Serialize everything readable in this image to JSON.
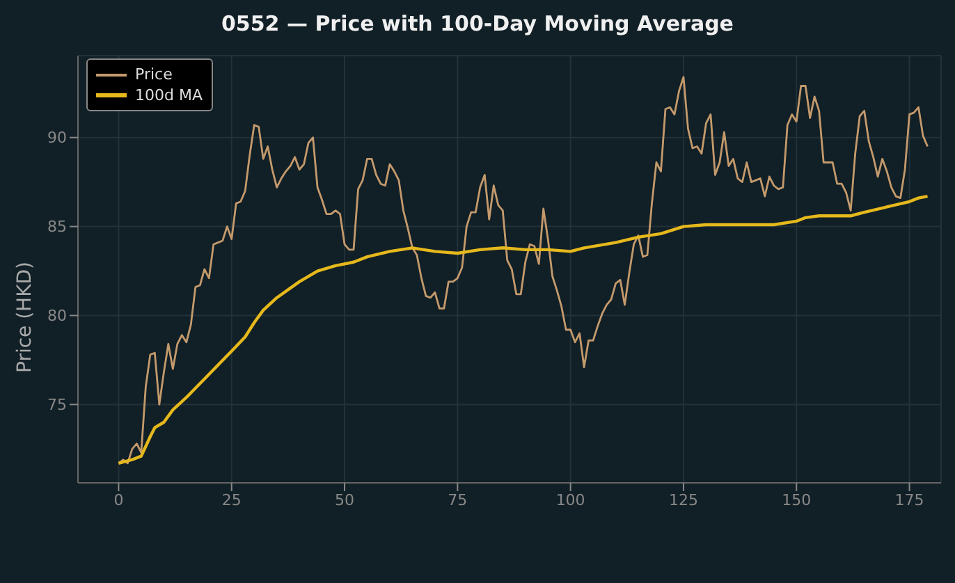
{
  "chart_data": {
    "type": "line",
    "title": "0552 — Price with 100-Day Moving Average",
    "ylabel": "Price (HKD)",
    "xlim": [
      -9,
      182
    ],
    "xticks": [
      0,
      25,
      50,
      75,
      100,
      125,
      150,
      175
    ],
    "ylim": [
      70.6,
      94.6
    ],
    "yticks": [
      75,
      80,
      85,
      90
    ],
    "grid": true,
    "legend": "top left",
    "marker": "none",
    "line_style": "solid",
    "series": [
      {
        "name": "Price",
        "color": "#c49a6c",
        "x": [
          0,
          1,
          2,
          3,
          4,
          5,
          6,
          7,
          8,
          9,
          10,
          11,
          12,
          13,
          14,
          15,
          16,
          17,
          18,
          19,
          20,
          21,
          22,
          23,
          24,
          25,
          26,
          27,
          28,
          29,
          30,
          31,
          32,
          33,
          34,
          35,
          36,
          37,
          38,
          39,
          40,
          41,
          42,
          43,
          44,
          45,
          46,
          47,
          48,
          49,
          50,
          51,
          52,
          53,
          54,
          55,
          56,
          57,
          58,
          59,
          60,
          61,
          62,
          63,
          64,
          65,
          66,
          67,
          68,
          69,
          70,
          71,
          72,
          73,
          74,
          75,
          76,
          77,
          78,
          79,
          80,
          81,
          82,
          83,
          84,
          85,
          86,
          87,
          88,
          89,
          90,
          91,
          92,
          93,
          94,
          95,
          96,
          97,
          98,
          99,
          100,
          101,
          102,
          103,
          104,
          105,
          106,
          107,
          108,
          109,
          110,
          111,
          112,
          113,
          114,
          115,
          116,
          117,
          118,
          119,
          120,
          121,
          122,
          123,
          124,
          125,
          126,
          127,
          128,
          129,
          130,
          131,
          132,
          133,
          134,
          135,
          136,
          137,
          138,
          139,
          140,
          141,
          142,
          143,
          144,
          145,
          146,
          147,
          148,
          149,
          150,
          151,
          152,
          153,
          154,
          155,
          156,
          157,
          158,
          159,
          160,
          161,
          162,
          163,
          164,
          165,
          166,
          167,
          168,
          169,
          170,
          171,
          172,
          173,
          174,
          175,
          176,
          177,
          178,
          179
        ],
        "values": [
          71.7,
          71.9,
          71.7,
          72.5,
          72.8,
          72.3,
          76.0,
          77.8,
          77.9,
          75.0,
          76.8,
          78.4,
          77.0,
          78.4,
          78.9,
          78.5,
          79.5,
          81.6,
          81.7,
          82.6,
          82.1,
          84.0,
          84.1,
          84.2,
          85.0,
          84.3,
          86.3,
          86.4,
          87.0,
          89.0,
          90.7,
          90.6,
          88.8,
          89.5,
          88.2,
          87.2,
          87.7,
          88.1,
          88.4,
          88.9,
          88.2,
          88.5,
          89.7,
          90.0,
          87.2,
          86.5,
          85.7,
          85.7,
          85.9,
          85.7,
          84.0,
          83.7,
          83.7,
          87.1,
          87.6,
          88.8,
          88.8,
          87.9,
          87.4,
          87.3,
          88.5,
          88.1,
          87.6,
          85.9,
          84.9,
          83.8,
          83.4,
          82.1,
          81.1,
          81.0,
          81.3,
          80.4,
          80.4,
          81.9,
          81.9,
          82.1,
          82.7,
          85.0,
          85.8,
          85.8,
          87.2,
          87.9,
          85.4,
          87.3,
          86.2,
          85.9,
          83.1,
          82.6,
          81.2,
          81.2,
          83.0,
          84.0,
          83.9,
          82.9,
          86.0,
          84.3,
          82.2,
          81.4,
          80.5,
          79.2,
          79.2,
          78.5,
          79.0,
          77.1,
          78.6,
          78.6,
          79.4,
          80.1,
          80.6,
          80.9,
          81.8,
          82.0,
          80.6,
          82.4,
          84.0,
          84.5,
          83.3,
          83.4,
          86.3,
          88.6,
          88.1,
          91.6,
          91.7,
          91.3,
          92.6,
          93.4,
          90.5,
          89.4,
          89.5,
          89.1,
          90.8,
          91.3,
          87.9,
          88.6,
          90.3,
          88.4,
          88.8,
          87.7,
          87.5,
          88.6,
          87.5,
          87.6,
          87.7,
          86.7,
          87.8,
          87.3,
          87.1,
          87.2,
          90.7,
          91.3,
          90.9,
          92.9,
          92.9,
          91.1,
          92.3,
          91.5,
          88.6,
          88.6,
          88.6,
          87.4,
          87.4,
          86.9,
          85.9,
          89.1,
          91.2,
          91.5,
          89.8,
          88.9,
          87.8,
          88.8,
          88.1,
          87.2,
          86.7,
          86.6,
          88.2,
          91.3,
          91.4,
          91.7,
          90.1,
          89.5
        ]
      },
      {
        "name": "100d MA",
        "color": "#e5b81c",
        "x": [
          0,
          3,
          5,
          7,
          8,
          10,
          12,
          15,
          20,
          25,
          28,
          30,
          32,
          35,
          40,
          44,
          48,
          50,
          52,
          55,
          60,
          65,
          70,
          75,
          80,
          85,
          90,
          95,
          100,
          103,
          110,
          115,
          120,
          125,
          130,
          135,
          140,
          145,
          150,
          152,
          155,
          160,
          162,
          165,
          170,
          175,
          177,
          179
        ],
        "values": [
          71.7,
          71.9,
          72.1,
          73.2,
          73.7,
          74.0,
          74.7,
          75.4,
          76.7,
          78.0,
          78.8,
          79.6,
          80.3,
          81.0,
          81.9,
          82.5,
          82.8,
          82.9,
          83.0,
          83.3,
          83.6,
          83.8,
          83.6,
          83.5,
          83.7,
          83.8,
          83.7,
          83.7,
          83.6,
          83.8,
          84.1,
          84.4,
          84.6,
          85.0,
          85.1,
          85.1,
          85.1,
          85.1,
          85.3,
          85.5,
          85.6,
          85.6,
          85.6,
          85.8,
          86.1,
          86.4,
          86.6,
          86.7
        ]
      }
    ]
  }
}
